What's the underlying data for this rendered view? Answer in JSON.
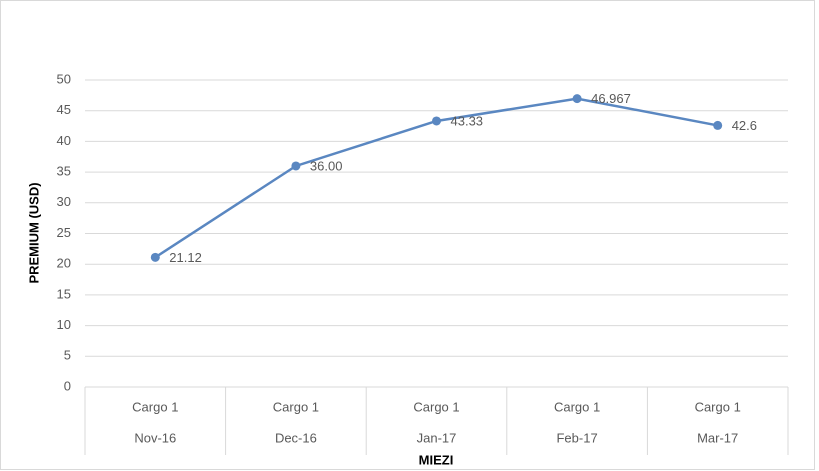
{
  "chart_data": {
    "type": "line",
    "categories": [
      "Nov-16",
      "Dec-16",
      "Jan-17",
      "Feb-17",
      "Mar-17"
    ],
    "subcategories": [
      "Cargo 1",
      "Cargo 1",
      "Cargo 1",
      "Cargo 1",
      "Cargo 1"
    ],
    "series": [
      {
        "name": "Cargo 1",
        "color": "#5a87c1",
        "values": [
          21.12,
          36,
          43.33,
          46.967,
          42.6
        ],
        "value_labels": [
          "21.12",
          "36.00",
          "43.33",
          "46.967",
          "42.6"
        ]
      }
    ],
    "x_label": "MIEZI",
    "y_label": "PREMIUM (USD)",
    "ylim": [
      0,
      50
    ],
    "yticks": [
      0,
      5,
      10,
      15,
      20,
      25,
      30,
      35,
      40,
      45,
      50
    ],
    "grid": true
  }
}
